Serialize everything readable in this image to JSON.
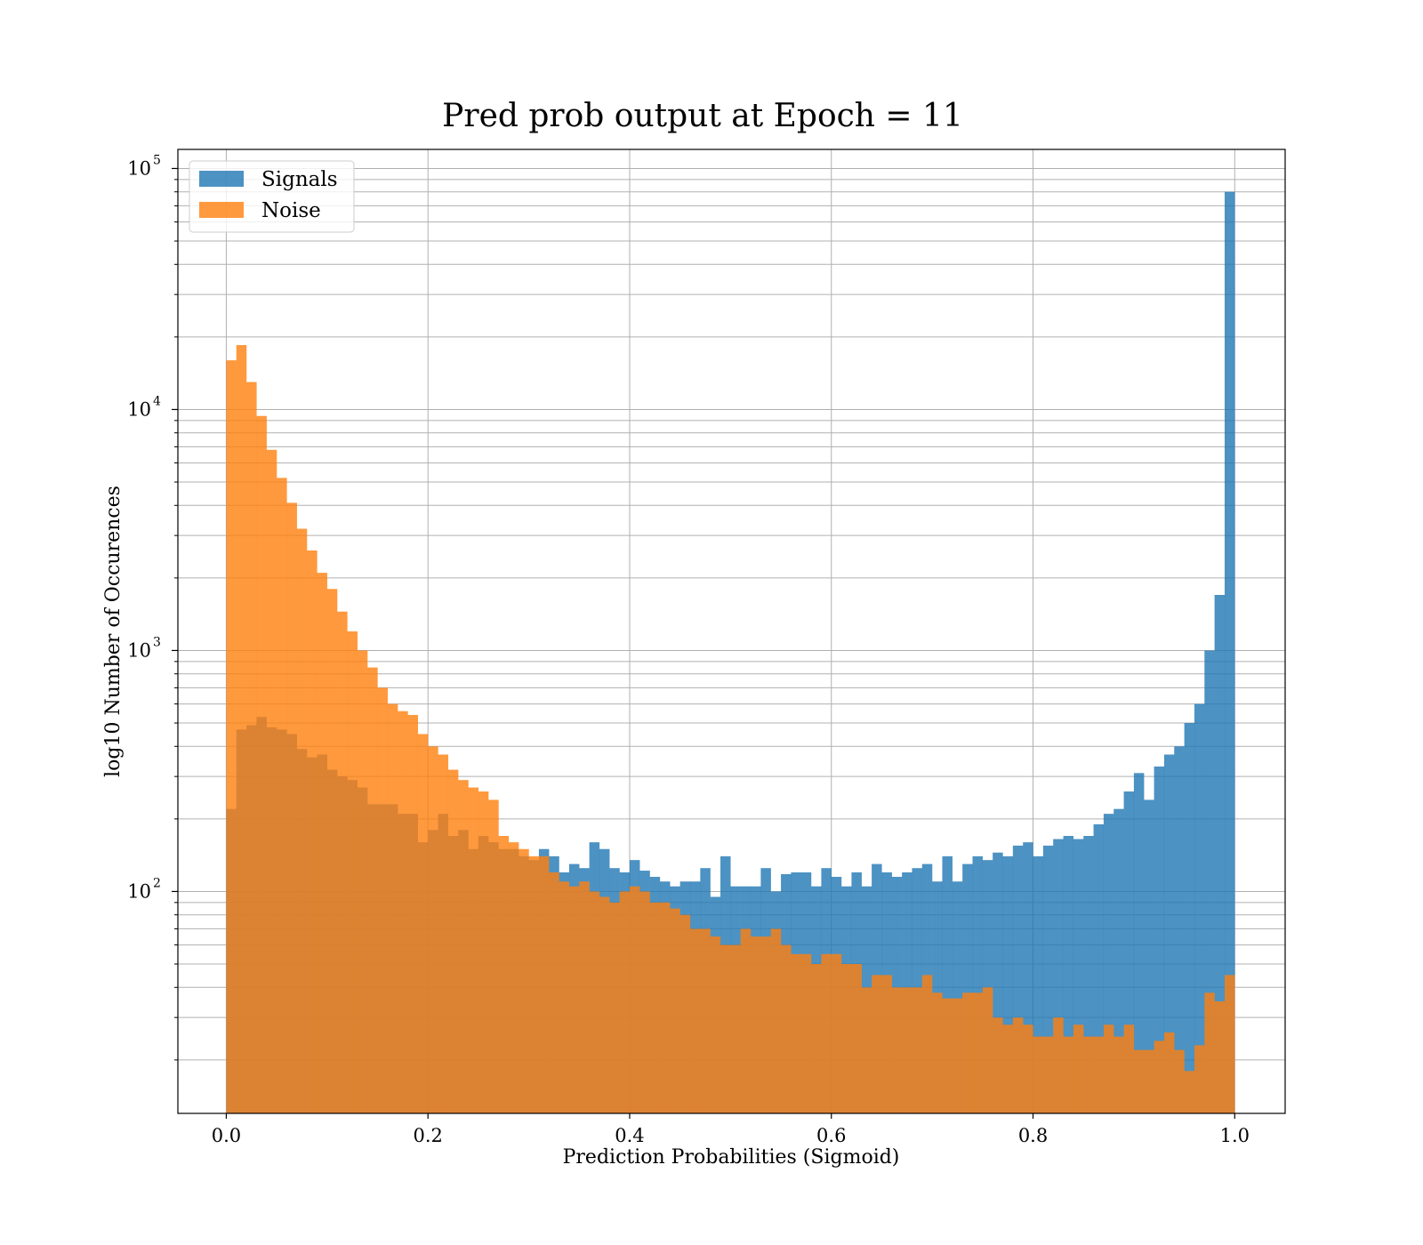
{
  "chart_data": {
    "type": "bar",
    "title": "Pred prob output at Epoch = 11",
    "xlabel": "Prediction Probabilities (Sigmoid)",
    "ylabel": "log10 Number of Occurences",
    "y_scale": "log",
    "xlim": [
      -0.048,
      1.05
    ],
    "ylim": [
      12,
      120000
    ],
    "bins": {
      "start": 0.0,
      "end": 1.0,
      "count": 100
    },
    "x_ticks": [
      0.0,
      0.2,
      0.4,
      0.6,
      0.8,
      1.0
    ],
    "x_tick_labels": [
      "0.0",
      "0.2",
      "0.4",
      "0.6",
      "0.8",
      "1.0"
    ],
    "y_ticks": [
      {
        "value": 100,
        "base": "10",
        "exp": "2"
      },
      {
        "value": 1000,
        "base": "10",
        "exp": "3"
      },
      {
        "value": 10000,
        "base": "10",
        "exp": "4"
      },
      {
        "value": 100000,
        "base": "10",
        "exp": "5"
      }
    ],
    "grid": true,
    "legend_position": "top-left",
    "series": [
      {
        "name": "Signals",
        "color": "#1f77b4",
        "opacity": 0.8,
        "values": [
          220,
          470,
          490,
          530,
          480,
          470,
          450,
          390,
          360,
          370,
          320,
          300,
          290,
          270,
          230,
          230,
          230,
          210,
          210,
          160,
          180,
          210,
          170,
          180,
          150,
          170,
          160,
          150,
          150,
          140,
          135,
          150,
          140,
          120,
          130,
          125,
          160,
          150,
          125,
          120,
          135,
          122,
          115,
          110,
          105,
          110,
          110,
          125,
          95,
          140,
          105,
          105,
          105,
          125,
          100,
          118,
          120,
          120,
          105,
          125,
          115,
          105,
          120,
          105,
          130,
          120,
          115,
          120,
          125,
          130,
          110,
          140,
          110,
          130,
          140,
          135,
          145,
          140,
          155,
          160,
          140,
          155,
          165,
          170,
          165,
          170,
          190,
          210,
          220,
          260,
          310,
          240,
          330,
          370,
          400,
          500,
          600,
          1000,
          1700,
          80000
        ]
      },
      {
        "name": "Noise",
        "color": "#ff7f0e",
        "opacity": 0.8,
        "values": [
          16000,
          18500,
          13000,
          9400,
          6800,
          5200,
          4100,
          3200,
          2600,
          2100,
          1800,
          1450,
          1200,
          1000,
          850,
          700,
          600,
          560,
          540,
          450,
          400,
          370,
          320,
          290,
          270,
          260,
          240,
          170,
          160,
          150,
          140,
          140,
          120,
          110,
          105,
          110,
          100,
          95,
          90,
          100,
          105,
          100,
          90,
          90,
          85,
          80,
          70,
          70,
          65,
          60,
          60,
          70,
          65,
          65,
          70,
          60,
          55,
          55,
          50,
          55,
          55,
          50,
          50,
          40,
          45,
          45,
          40,
          40,
          40,
          45,
          38,
          36,
          36,
          38,
          38,
          40,
          30,
          28,
          30,
          28,
          25,
          25,
          30,
          25,
          28,
          25,
          25,
          28,
          25,
          28,
          22,
          22,
          24,
          26,
          22,
          18,
          23,
          38,
          35,
          45
        ]
      }
    ]
  }
}
